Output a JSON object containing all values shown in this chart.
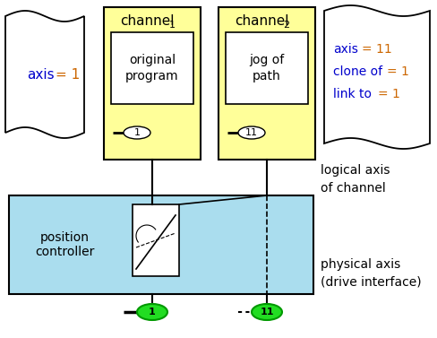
{
  "bg_color": "#ffffff",
  "yellow_color": "#ffff99",
  "cyan_color": "#aaddee",
  "green_color": "#22dd22",
  "green_dark": "#009900",
  "text_dark": "#000000",
  "text_orange": "#cc6600",
  "text_blue": "#0000cc",
  "channel1_content": "original\nprogram",
  "channel2_content": "jog of\npath",
  "label_logical": "logical axis\nof channel",
  "label_physical": "physical axis\n(drive interface)",
  "pos_ctrl_text": "position\ncontroller",
  "fig_w": 4.88,
  "fig_h": 3.77,
  "dpi": 100
}
